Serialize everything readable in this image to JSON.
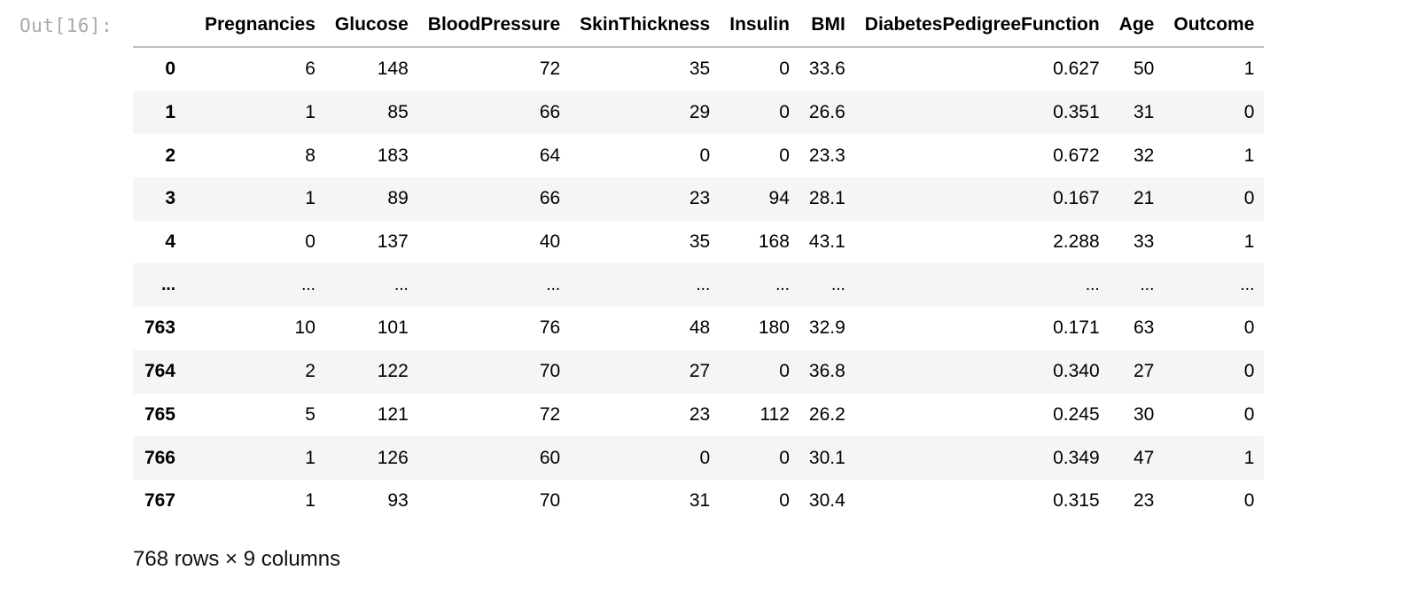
{
  "cell": {
    "prompt": "Out[16]:"
  },
  "table": {
    "columns": [
      "Pregnancies",
      "Glucose",
      "BloodPressure",
      "SkinThickness",
      "Insulin",
      "BMI",
      "DiabetesPedigreeFunction",
      "Age",
      "Outcome"
    ],
    "rows": [
      {
        "index": "0",
        "values": [
          "6",
          "148",
          "72",
          "35",
          "0",
          "33.6",
          "0.627",
          "50",
          "1"
        ]
      },
      {
        "index": "1",
        "values": [
          "1",
          "85",
          "66",
          "29",
          "0",
          "26.6",
          "0.351",
          "31",
          "0"
        ]
      },
      {
        "index": "2",
        "values": [
          "8",
          "183",
          "64",
          "0",
          "0",
          "23.3",
          "0.672",
          "32",
          "1"
        ]
      },
      {
        "index": "3",
        "values": [
          "1",
          "89",
          "66",
          "23",
          "94",
          "28.1",
          "0.167",
          "21",
          "0"
        ]
      },
      {
        "index": "4",
        "values": [
          "0",
          "137",
          "40",
          "35",
          "168",
          "43.1",
          "2.288",
          "33",
          "1"
        ]
      },
      {
        "index": "...",
        "values": [
          "...",
          "...",
          "...",
          "...",
          "...",
          "...",
          "...",
          "...",
          "..."
        ]
      },
      {
        "index": "763",
        "values": [
          "10",
          "101",
          "76",
          "48",
          "180",
          "32.9",
          "0.171",
          "63",
          "0"
        ]
      },
      {
        "index": "764",
        "values": [
          "2",
          "122",
          "70",
          "27",
          "0",
          "36.8",
          "0.340",
          "27",
          "0"
        ]
      },
      {
        "index": "765",
        "values": [
          "5",
          "121",
          "72",
          "23",
          "112",
          "26.2",
          "0.245",
          "30",
          "0"
        ]
      },
      {
        "index": "766",
        "values": [
          "1",
          "126",
          "60",
          "0",
          "0",
          "30.1",
          "0.349",
          "47",
          "1"
        ]
      },
      {
        "index": "767",
        "values": [
          "1",
          "93",
          "70",
          "31",
          "0",
          "30.4",
          "0.315",
          "23",
          "0"
        ]
      }
    ],
    "shape_text": "768 rows × 9 columns"
  },
  "colors": {
    "prompt": "#a9a9a9",
    "stripe": "#f5f5f5",
    "header_rule": "#bdbdbd"
  }
}
